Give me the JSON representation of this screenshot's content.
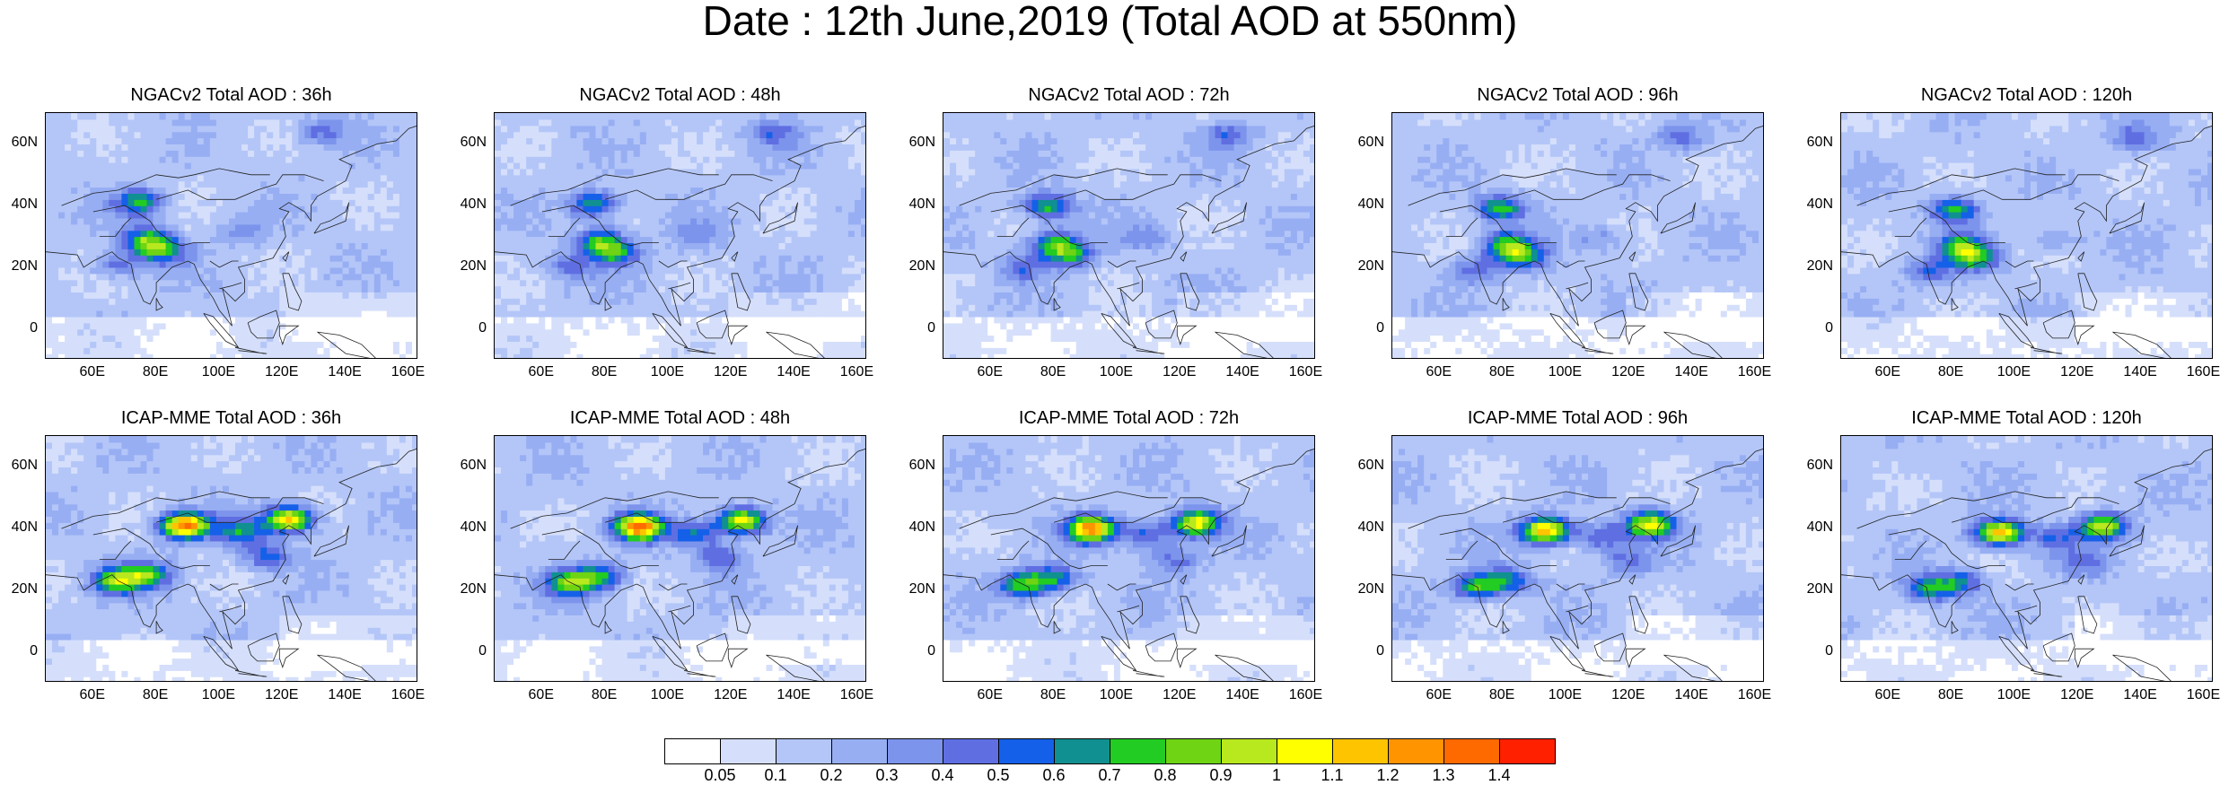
{
  "main_title": "Date : 12th June,2019 (Total AOD at 550nm)",
  "row_titles": [
    [
      "NGACv2 Total AOD : 36h",
      "NGACv2 Total AOD : 48h",
      "NGACv2 Total AOD : 72h",
      "NGACv2 Total AOD : 96h",
      "NGACv2 Total AOD : 120h"
    ],
    [
      "ICAP-MME Total AOD : 36h",
      "ICAP-MME Total AOD : 48h",
      "ICAP-MME Total AOD : 72h",
      "ICAP-MME Total AOD : 96h",
      "ICAP-MME Total AOD : 120h"
    ]
  ],
  "lat_labels": [
    "60N",
    "40N",
    "20N",
    "0"
  ],
  "lon_labels": [
    "60E",
    "80E",
    "100E",
    "120E",
    "140E",
    "160E"
  ],
  "colorbar": {
    "labels": [
      "0.05",
      "0.1",
      "0.2",
      "0.3",
      "0.4",
      "0.5",
      "0.6",
      "0.7",
      "0.8",
      "0.9",
      "1",
      "1.1",
      "1.2",
      "1.3",
      "1.4"
    ],
    "colors": [
      "#ffffff",
      "#d5dffb",
      "#b4c6f8",
      "#97aef3",
      "#7d94ec",
      "#5f6fe2",
      "#1560e8",
      "#109090",
      "#22cc22",
      "#6ed414",
      "#b8e81e",
      "#ffff00",
      "#ffc400",
      "#ff9400",
      "#ff6a00",
      "#ff2000"
    ]
  },
  "hotspots": {
    "ngac": [
      {
        "lon": 80,
        "lat": 28,
        "level": 8
      },
      {
        "lon": 78,
        "lat": 40,
        "level": 8
      },
      {
        "lon": 85,
        "lat": 24,
        "level": 7
      },
      {
        "lon": 70,
        "lat": 20,
        "level": 5
      },
      {
        "lon": 135,
        "lat": 63,
        "level": 5
      },
      {
        "lon": 110,
        "lat": 30,
        "level": 4
      }
    ],
    "icap": [
      {
        "lon": 92,
        "lat": 40,
        "level": 14
      },
      {
        "lon": 125,
        "lat": 42,
        "level": 12
      },
      {
        "lon": 70,
        "lat": 22,
        "level": 9
      },
      {
        "lon": 80,
        "lat": 24,
        "level": 8
      },
      {
        "lon": 110,
        "lat": 38,
        "level": 7
      },
      {
        "lon": 118,
        "lat": 30,
        "level": 6
      }
    ]
  }
}
